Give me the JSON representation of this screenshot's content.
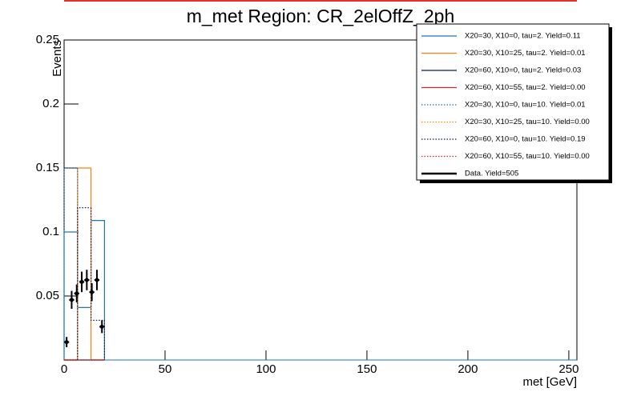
{
  "chart_data": {
    "type": "histogram",
    "title": "m_met Region: CR_2elOffZ_2ph",
    "xlabel": "met [GeV]",
    "ylabel": "Events",
    "xlim": [
      0,
      254
    ],
    "ylim": [
      0,
      0.25
    ],
    "xticks": [
      0,
      50,
      100,
      150,
      200,
      250
    ],
    "yticks": [
      0.05,
      0.1,
      0.15,
      0.2,
      0.25
    ],
    "bins": [
      0,
      6.67,
      13.33,
      20
    ],
    "legend": "upper right",
    "series": [
      {
        "name": "X20=30, X10=0, tau=2. Yield=0.11",
        "color": "#1f77b4",
        "linestyle": "solid",
        "values": [
          0.1,
          0.041,
          0.109
        ]
      },
      {
        "name": "X20=30, X10=25, tau=2. Yield=0.01",
        "color": "#ff7f0e",
        "linestyle": "solid",
        "values": [
          0,
          0.15,
          0
        ]
      },
      {
        "name": "X20=60, X10=0, tau=2. Yield=0.03",
        "color": "#0b1a5a",
        "linestyle": "solid",
        "values": [
          0,
          0,
          0
        ]
      },
      {
        "name": "X20=60, X10=55, tau=2. Yield=0.00",
        "color": "#d62728",
        "linestyle": "solid",
        "values": [
          0,
          0,
          0
        ]
      },
      {
        "name": "X20=30, X10=0, tau=10. Yield=0.01",
        "color": "#1f77b4",
        "linestyle": "dotted",
        "values": [
          0.15,
          0,
          0
        ]
      },
      {
        "name": "X20=30, X10=25, tau=10. Yield=0.00",
        "color": "#ff7f0e",
        "linestyle": "dotted",
        "values": [
          0,
          0,
          0
        ]
      },
      {
        "name": "X20=60, X10=0, tau=10. Yield=0.19",
        "color": "#0b1a5a",
        "linestyle": "dotted",
        "values": [
          0,
          0.119,
          0.031
        ]
      },
      {
        "name": "X20=60, X10=55, tau=10. Yield=0.00",
        "color": "#d62728",
        "linestyle": "dotted",
        "values": [
          0,
          0,
          0
        ]
      }
    ],
    "data": {
      "name": "Data. Yield=505",
      "color": "#000000",
      "x": [
        1.25,
        3.75,
        6.25,
        8.75,
        11.25,
        13.75,
        16.25,
        18.75
      ],
      "values": [
        0.014,
        0.047,
        0.052,
        0.061,
        0.0625,
        0.053,
        0.0625,
        0.026
      ],
      "xerr": [
        1.25,
        1.25,
        1.25,
        1.25,
        1.25,
        1.25,
        1.25,
        1.25
      ],
      "errors": [
        0.004,
        0.007,
        0.007,
        0.008,
        0.008,
        0.007,
        0.008,
        0.005
      ]
    }
  }
}
